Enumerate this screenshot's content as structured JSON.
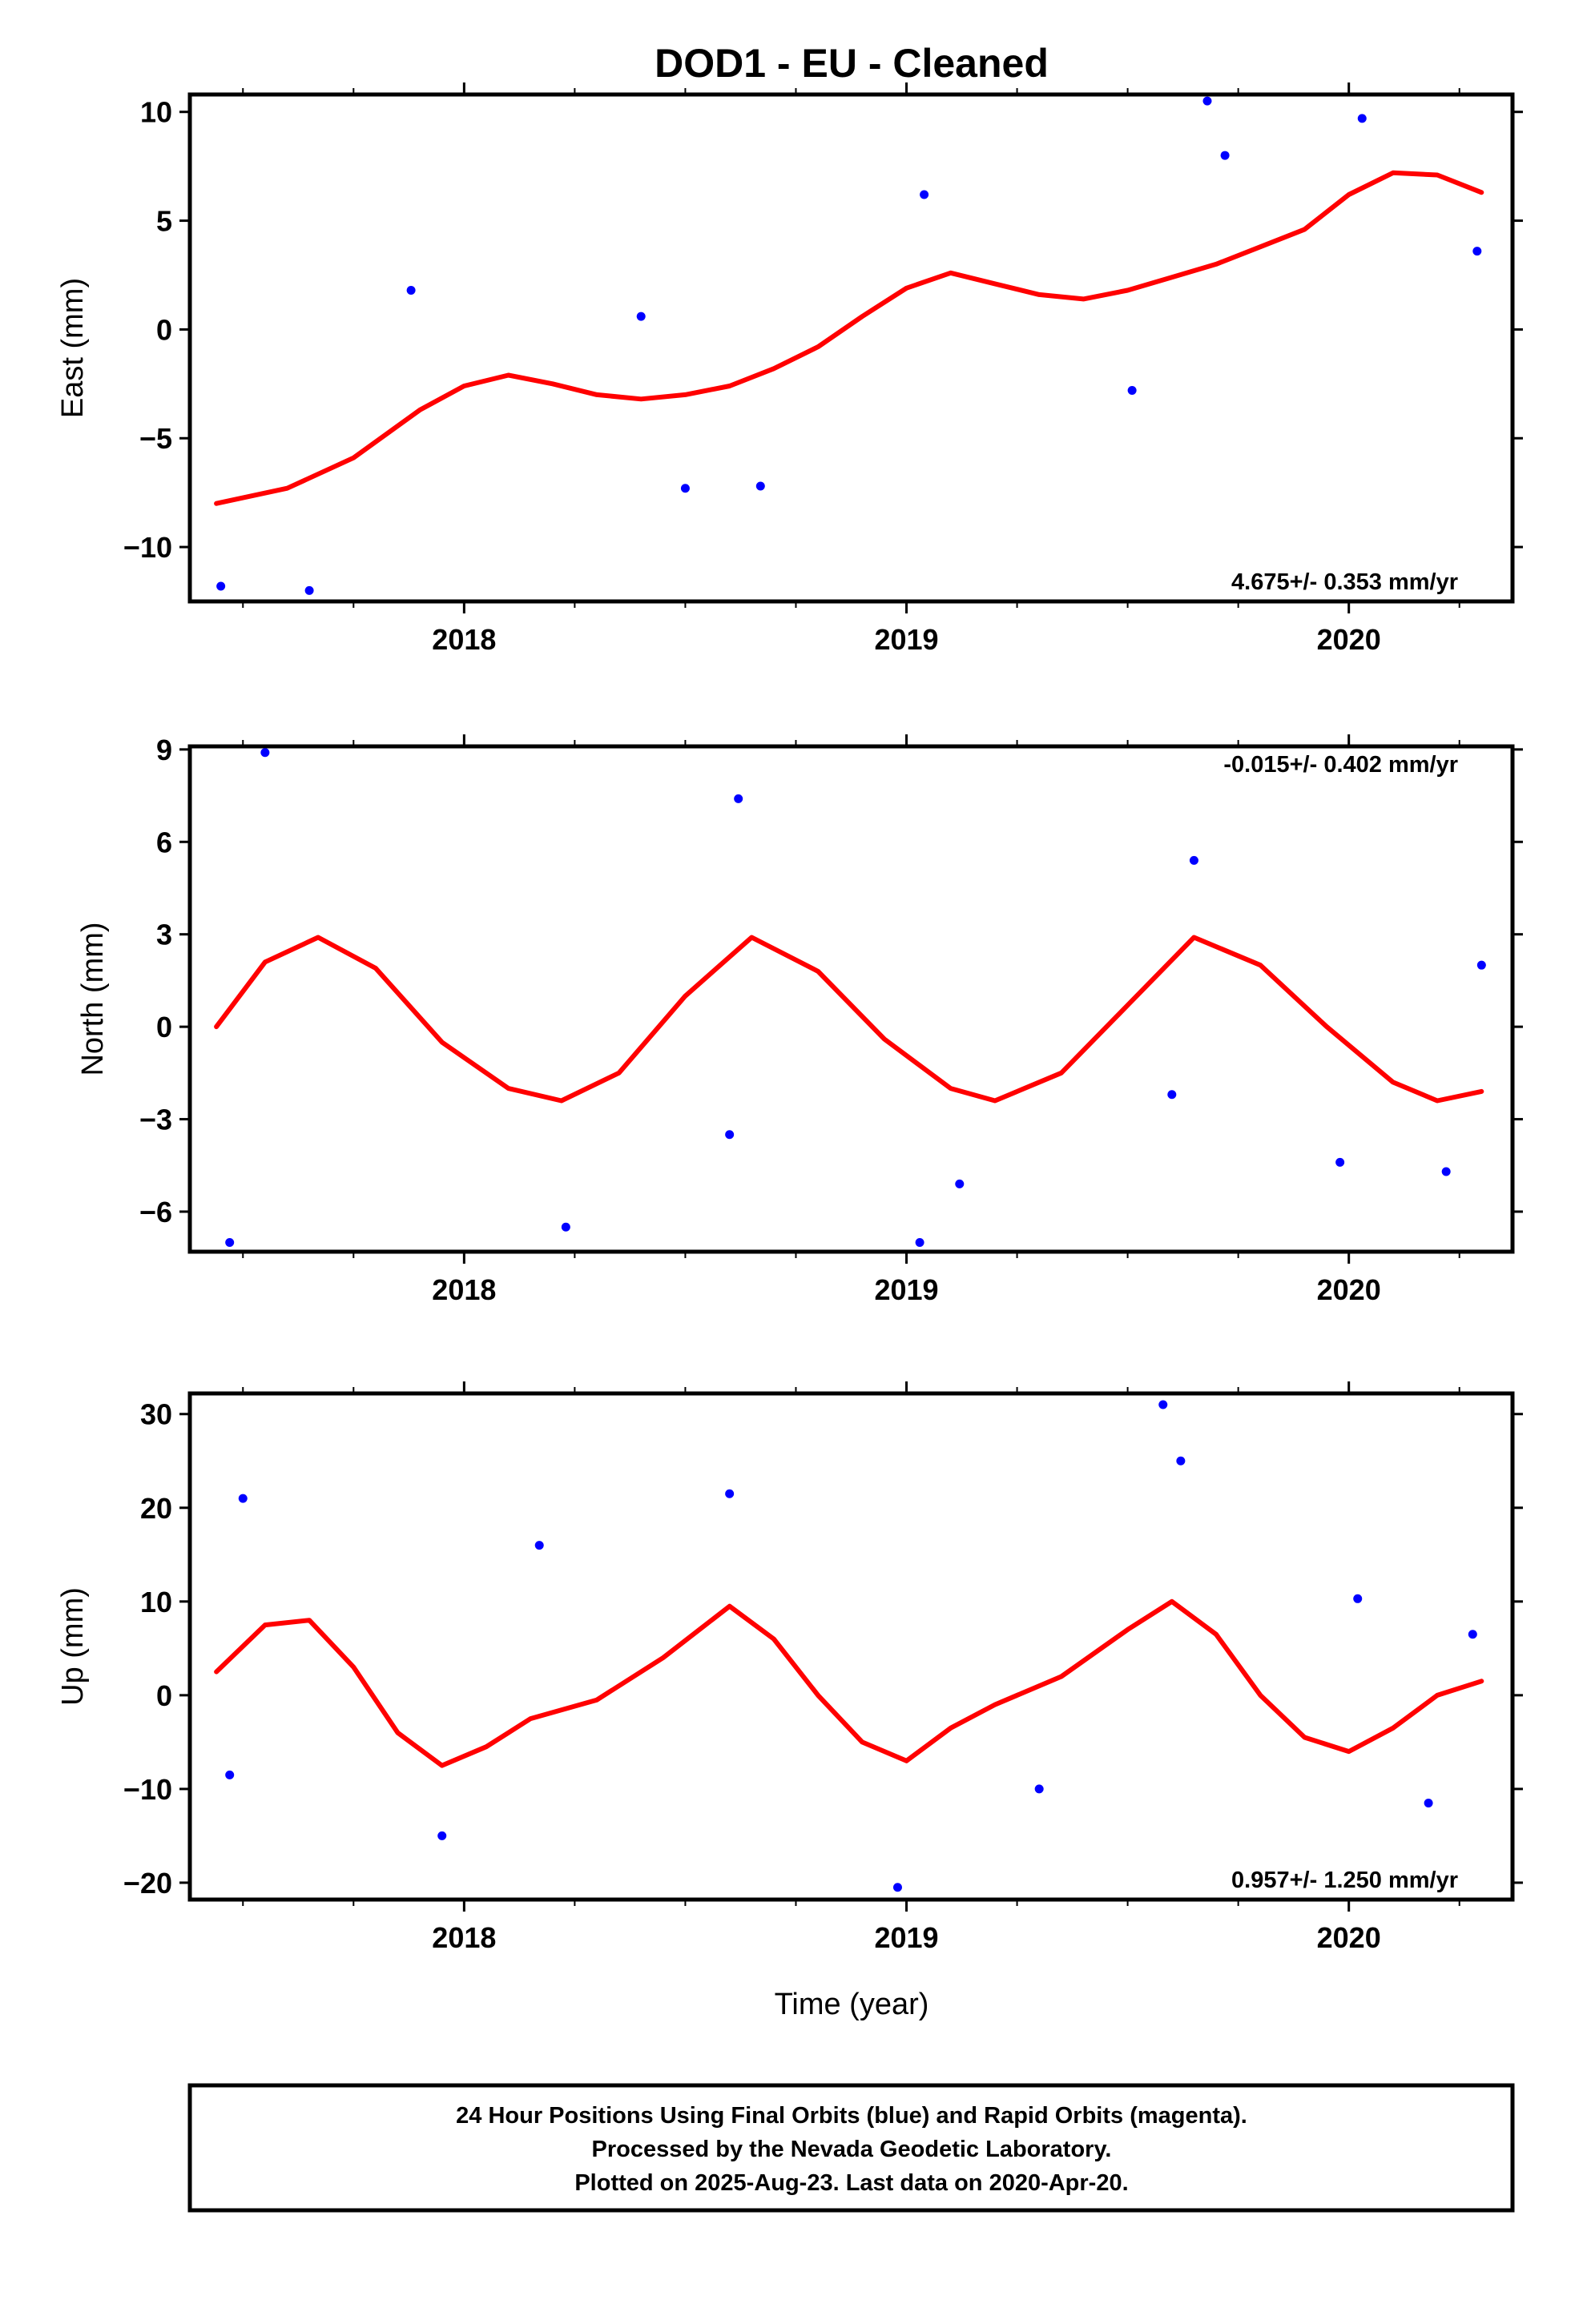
{
  "title": "DOD1  - EU - Cleaned",
  "xlabel": "Time (year)",
  "colors": {
    "points": "#0000ff",
    "fit": "#ff0000",
    "frame": "#000000"
  },
  "footer": {
    "line1": "24 Hour Positions Using Final Orbits (blue) and Rapid Orbits (magenta).",
    "line2": "Processed by the Nevada Geodetic Laboratory.",
    "line3": "Plotted on 2025-Aug-23. Last data on 2020-Apr-20."
  },
  "chart_data": [
    {
      "type": "scatter",
      "ylabel": "East (mm)",
      "rate_label": "4.675+/- 0.353 mm/yr",
      "rate_position": "bottom-right",
      "xlim": [
        2017.38,
        2020.37
      ],
      "ylim": [
        -12.5,
        10.8
      ],
      "xticks": [
        2018,
        2019,
        2020
      ],
      "yticks": [
        10,
        5,
        0,
        -5,
        -10
      ],
      "ytick_labels": [
        "10",
        "5",
        "0",
        "−5",
        "−10"
      ],
      "grid": false,
      "fit": {
        "x": [
          2017.44,
          2017.6,
          2017.75,
          2017.9,
          2018.0,
          2018.1,
          2018.2,
          2018.3,
          2018.4,
          2018.5,
          2018.6,
          2018.7,
          2018.8,
          2018.9,
          2019.0,
          2019.1,
          2019.2,
          2019.3,
          2019.4,
          2019.5,
          2019.6,
          2019.7,
          2019.8,
          2019.9,
          2020.0,
          2020.1,
          2020.2,
          2020.3
        ],
        "y": [
          -8.0,
          -7.3,
          -5.9,
          -3.7,
          -2.6,
          -2.1,
          -2.5,
          -3.0,
          -3.2,
          -3.0,
          -2.6,
          -1.8,
          -0.8,
          0.6,
          1.9,
          2.6,
          2.1,
          1.6,
          1.4,
          1.8,
          2.4,
          3.0,
          3.8,
          4.6,
          6.2,
          7.2,
          7.1,
          6.3
        ]
      },
      "points": [
        {
          "x": 2017.65,
          "y": -12.0
        },
        {
          "x": 2017.45,
          "y": -11.8
        },
        {
          "x": 2017.88,
          "y": 1.8
        },
        {
          "x": 2018.4,
          "y": 0.6
        },
        {
          "x": 2018.5,
          "y": -7.3
        },
        {
          "x": 2018.67,
          "y": -7.2
        },
        {
          "x": 2019.04,
          "y": 6.2
        },
        {
          "x": 2019.68,
          "y": 10.5
        },
        {
          "x": 2019.51,
          "y": -2.8
        },
        {
          "x": 2019.72,
          "y": 8.0
        },
        {
          "x": 2020.03,
          "y": 9.7
        },
        {
          "x": 2020.29,
          "y": 3.6
        }
      ]
    },
    {
      "type": "scatter",
      "ylabel": "North (mm)",
      "rate_label": "-0.015+/- 0.402 mm/yr",
      "rate_position": "top-right",
      "xlim": [
        2017.38,
        2020.37
      ],
      "ylim": [
        -7.3,
        9.1
      ],
      "xticks": [
        2018,
        2019,
        2020
      ],
      "yticks": [
        9,
        6,
        3,
        0,
        -3,
        -6
      ],
      "ytick_labels": [
        "9",
        "6",
        "3",
        "0",
        "−3",
        "−6"
      ],
      "grid": false,
      "fit": {
        "x": [
          2017.44,
          2017.55,
          2017.67,
          2017.8,
          2017.95,
          2018.1,
          2018.22,
          2018.35,
          2018.5,
          2018.65,
          2018.8,
          2018.95,
          2019.1,
          2019.2,
          2019.35,
          2019.5,
          2019.65,
          2019.8,
          2019.95,
          2020.1,
          2020.2,
          2020.3
        ],
        "y": [
          0.0,
          2.1,
          2.9,
          1.9,
          -0.5,
          -2.0,
          -2.4,
          -1.5,
          1.0,
          2.9,
          1.8,
          -0.4,
          -2.0,
          -2.4,
          -1.5,
          0.7,
          2.9,
          2.0,
          0.0,
          -1.8,
          -2.4,
          -2.1
        ]
      },
      "points": [
        {
          "x": 2017.47,
          "y": -7.0
        },
        {
          "x": 2017.55,
          "y": 8.9
        },
        {
          "x": 2018.23,
          "y": -6.5
        },
        {
          "x": 2018.62,
          "y": 7.4
        },
        {
          "x": 2018.6,
          "y": -3.5
        },
        {
          "x": 2019.03,
          "y": -7.0
        },
        {
          "x": 2019.12,
          "y": -5.1
        },
        {
          "x": 2019.65,
          "y": 5.4
        },
        {
          "x": 2019.6,
          "y": -2.2
        },
        {
          "x": 2019.98,
          "y": -4.4
        },
        {
          "x": 2020.22,
          "y": -4.7
        },
        {
          "x": 2020.3,
          "y": 2.0
        }
      ]
    },
    {
      "type": "scatter",
      "ylabel": "Up (mm)",
      "rate_label": "0.957+/- 1.250 mm/yr",
      "rate_position": "bottom-right",
      "xlim": [
        2017.38,
        2020.37
      ],
      "ylim": [
        -21.8,
        32.2
      ],
      "xticks": [
        2018,
        2019,
        2020
      ],
      "yticks": [
        30,
        20,
        10,
        0,
        -10,
        -20
      ],
      "ytick_labels": [
        "30",
        "20",
        "10",
        "0",
        "−10",
        "−20"
      ],
      "grid": false,
      "fit": {
        "x": [
          2017.44,
          2017.55,
          2017.65,
          2017.75,
          2017.85,
          2017.95,
          2018.05,
          2018.15,
          2018.3,
          2018.45,
          2018.6,
          2018.7,
          2018.8,
          2018.9,
          2019.0,
          2019.1,
          2019.2,
          2019.35,
          2019.5,
          2019.6,
          2019.7,
          2019.8,
          2019.9,
          2020.0,
          2020.1,
          2020.2,
          2020.3
        ],
        "y": [
          2.5,
          7.5,
          8.0,
          3.0,
          -4.0,
          -7.5,
          -5.5,
          -2.5,
          -0.5,
          4.0,
          9.5,
          6.0,
          0.0,
          -5.0,
          -7.0,
          -3.5,
          -1.0,
          2.0,
          7.0,
          10.0,
          6.5,
          0.0,
          -4.5,
          -6.0,
          -3.5,
          0.0,
          1.5
        ]
      },
      "points": [
        {
          "x": 2017.47,
          "y": -8.5
        },
        {
          "x": 2017.5,
          "y": 21.0
        },
        {
          "x": 2017.95,
          "y": -15.0
        },
        {
          "x": 2018.17,
          "y": 16.0
        },
        {
          "x": 2018.6,
          "y": 21.5
        },
        {
          "x": 2018.98,
          "y": -20.5
        },
        {
          "x": 2019.3,
          "y": -10.0
        },
        {
          "x": 2019.58,
          "y": 31.0
        },
        {
          "x": 2019.62,
          "y": 25.0
        },
        {
          "x": 2020.02,
          "y": 10.3
        },
        {
          "x": 2020.18,
          "y": -11.5
        },
        {
          "x": 2020.28,
          "y": 6.5
        }
      ]
    }
  ]
}
